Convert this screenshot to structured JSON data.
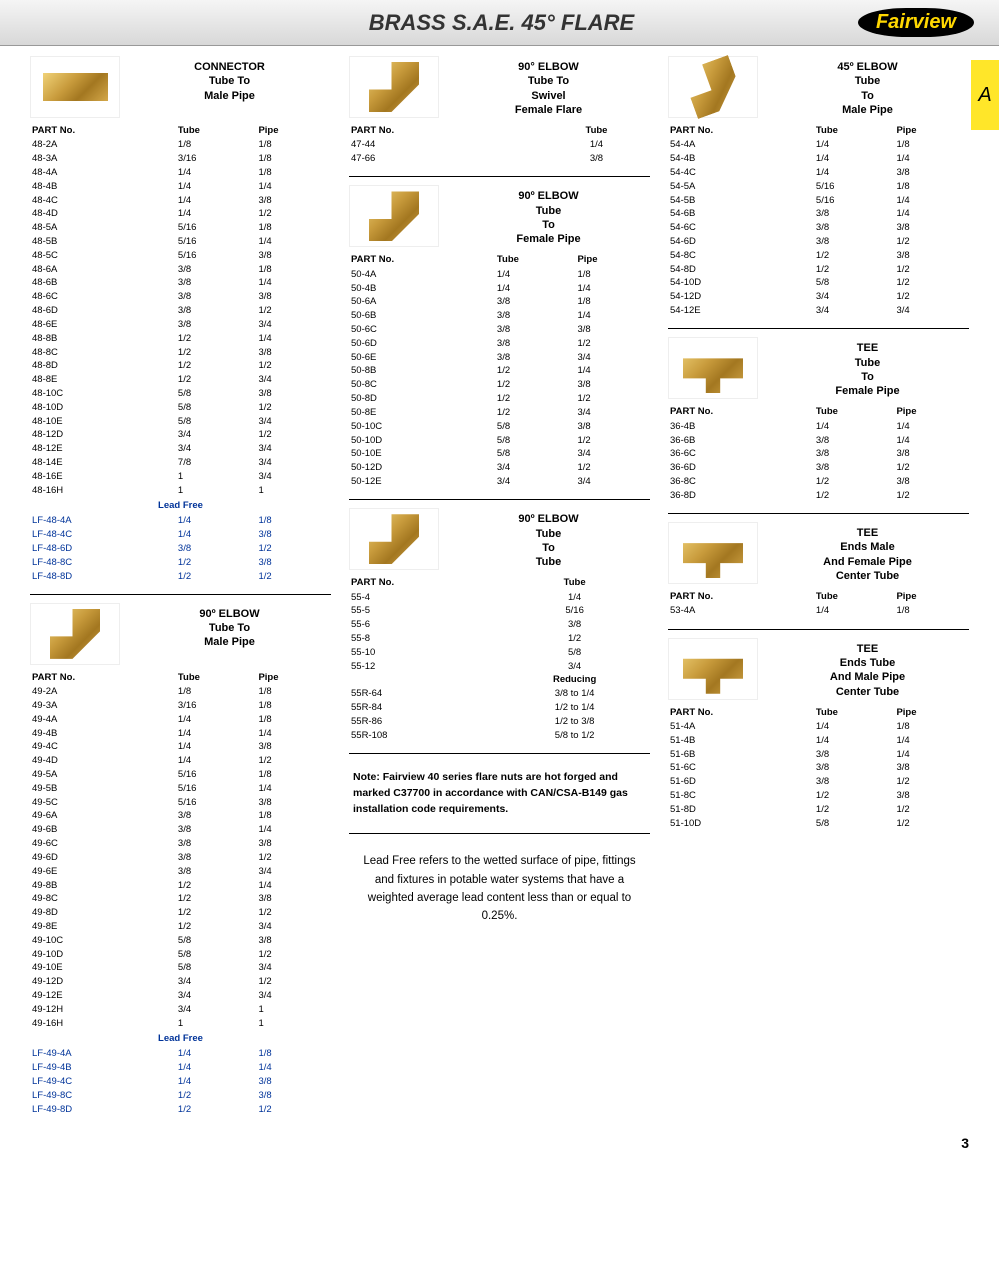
{
  "header": {
    "title": "BRASS S.A.E. 45° FLARE",
    "logo": "Fairview",
    "tab": "A",
    "page": "3"
  },
  "labels": {
    "part": "PART No.",
    "tube": "Tube",
    "pipe": "Pipe",
    "leadfree": "Lead Free",
    "reducing": "Reducing"
  },
  "s48": {
    "title": "CONNECTOR\nTube To\nMale Pipe",
    "rows": [
      [
        "48-2A",
        "1/8",
        "1/8"
      ],
      [
        "48-3A",
        "3/16",
        "1/8"
      ],
      [
        "48-4A",
        "1/4",
        "1/8"
      ],
      [
        "48-4B",
        "1/4",
        "1/4"
      ],
      [
        "48-4C",
        "1/4",
        "3/8"
      ],
      [
        "48-4D",
        "1/4",
        "1/2"
      ],
      [
        "48-5A",
        "5/16",
        "1/8"
      ],
      [
        "48-5B",
        "5/16",
        "1/4"
      ],
      [
        "48-5C",
        "5/16",
        "3/8"
      ],
      [
        "48-6A",
        "3/8",
        "1/8"
      ],
      [
        "48-6B",
        "3/8",
        "1/4"
      ],
      [
        "48-6C",
        "3/8",
        "3/8"
      ],
      [
        "48-6D",
        "3/8",
        "1/2"
      ],
      [
        "48-6E",
        "3/8",
        "3/4"
      ],
      [
        "48-8B",
        "1/2",
        "1/4"
      ],
      [
        "48-8C",
        "1/2",
        "3/8"
      ],
      [
        "48-8D",
        "1/2",
        "1/2"
      ],
      [
        "48-8E",
        "1/2",
        "3/4"
      ],
      [
        "48-10C",
        "5/8",
        "3/8"
      ],
      [
        "48-10D",
        "5/8",
        "1/2"
      ],
      [
        "48-10E",
        "5/8",
        "3/4"
      ],
      [
        "48-12D",
        "3/4",
        "1/2"
      ],
      [
        "48-12E",
        "3/4",
        "3/4"
      ],
      [
        "48-14E",
        "7/8",
        "3/4"
      ],
      [
        "48-16E",
        "1",
        "3/4"
      ],
      [
        "48-16H",
        "1",
        "1"
      ]
    ],
    "lf": [
      [
        "LF-48-4A",
        "1/4",
        "1/8"
      ],
      [
        "LF-48-4C",
        "1/4",
        "3/8"
      ],
      [
        "LF-48-6D",
        "3/8",
        "1/2"
      ],
      [
        "LF-48-8C",
        "1/2",
        "3/8"
      ],
      [
        "LF-48-8D",
        "1/2",
        "1/2"
      ]
    ]
  },
  "s49": {
    "title": "90º ELBOW\nTube To\nMale Pipe",
    "rows": [
      [
        "49-2A",
        "1/8",
        "1/8"
      ],
      [
        "49-3A",
        "3/16",
        "1/8"
      ],
      [
        "49-4A",
        "1/4",
        "1/8"
      ],
      [
        "49-4B",
        "1/4",
        "1/4"
      ],
      [
        "49-4C",
        "1/4",
        "3/8"
      ],
      [
        "49-4D",
        "1/4",
        "1/2"
      ],
      [
        "49-5A",
        "5/16",
        "1/8"
      ],
      [
        "49-5B",
        "5/16",
        "1/4"
      ],
      [
        "49-5C",
        "5/16",
        "3/8"
      ],
      [
        "49-6A",
        "3/8",
        "1/8"
      ],
      [
        "49-6B",
        "3/8",
        "1/4"
      ],
      [
        "49-6C",
        "3/8",
        "3/8"
      ],
      [
        "49-6D",
        "3/8",
        "1/2"
      ],
      [
        "49-6E",
        "3/8",
        "3/4"
      ],
      [
        "49-8B",
        "1/2",
        "1/4"
      ],
      [
        "49-8C",
        "1/2",
        "3/8"
      ],
      [
        "49-8D",
        "1/2",
        "1/2"
      ],
      [
        "49-8E",
        "1/2",
        "3/4"
      ],
      [
        "49-10C",
        "5/8",
        "3/8"
      ],
      [
        "49-10D",
        "5/8",
        "1/2"
      ],
      [
        "49-10E",
        "5/8",
        "3/4"
      ],
      [
        "49-12D",
        "3/4",
        "1/2"
      ],
      [
        "49-12E",
        "3/4",
        "3/4"
      ],
      [
        "49-12H",
        "3/4",
        "1"
      ],
      [
        "49-16H",
        "1",
        "1"
      ]
    ],
    "lf": [
      [
        "LF-49-4A",
        "1/4",
        "1/8"
      ],
      [
        "LF-49-4B",
        "1/4",
        "1/4"
      ],
      [
        "LF-49-4C",
        "1/4",
        "3/8"
      ],
      [
        "LF-49-8C",
        "1/2",
        "3/8"
      ],
      [
        "LF-49-8D",
        "1/2",
        "1/2"
      ]
    ]
  },
  "s47": {
    "title": "90° ELBOW\nTube To\nSwivel\nFemale Flare",
    "rows": [
      [
        "47-44",
        "1/4"
      ],
      [
        "47-66",
        "3/8"
      ]
    ]
  },
  "s50": {
    "title": "90º ELBOW\nTube\nTo\nFemale Pipe",
    "rows": [
      [
        "50-4A",
        "1/4",
        "1/8"
      ],
      [
        "50-4B",
        "1/4",
        "1/4"
      ],
      [
        "50-6A",
        "3/8",
        "1/8"
      ],
      [
        "50-6B",
        "3/8",
        "1/4"
      ],
      [
        "50-6C",
        "3/8",
        "3/8"
      ],
      [
        "50-6D",
        "3/8",
        "1/2"
      ],
      [
        "50-6E",
        "3/8",
        "3/4"
      ],
      [
        "50-8B",
        "1/2",
        "1/4"
      ],
      [
        "50-8C",
        "1/2",
        "3/8"
      ],
      [
        "50-8D",
        "1/2",
        "1/2"
      ],
      [
        "50-8E",
        "1/2",
        "3/4"
      ],
      [
        "50-10C",
        "5/8",
        "3/8"
      ],
      [
        "50-10D",
        "5/8",
        "1/2"
      ],
      [
        "50-10E",
        "5/8",
        "3/4"
      ],
      [
        "50-12D",
        "3/4",
        "1/2"
      ],
      [
        "50-12E",
        "3/4",
        "3/4"
      ]
    ]
  },
  "s55": {
    "title": "90º ELBOW\nTube\nTo\nTube",
    "rows": [
      [
        "55-4",
        "1/4"
      ],
      [
        "55-5",
        "5/16"
      ],
      [
        "55-6",
        "3/8"
      ],
      [
        "55-8",
        "1/2"
      ],
      [
        "55-10",
        "5/8"
      ],
      [
        "55-12",
        "3/4"
      ]
    ],
    "red": [
      [
        "55R-64",
        "3/8 to 1/4"
      ],
      [
        "55R-84",
        "1/2 to 1/4"
      ],
      [
        "55R-86",
        "1/2 to 3/8"
      ],
      [
        "55R-108",
        "5/8 to 1/2"
      ]
    ]
  },
  "note1": "Note: Fairview 40 series flare nuts are hot forged and marked C37700 in accordance with CAN/CSA-B149 gas installation code requirements.",
  "note2": "Lead Free refers to the wetted surface of pipe, fittings and fixtures in potable water systems that have a weighted average lead content less than or equal to 0.25%.",
  "s54": {
    "title": "45º ELBOW\nTube\nTo\nMale Pipe",
    "rows": [
      [
        "54-4A",
        "1/4",
        "1/8"
      ],
      [
        "54-4B",
        "1/4",
        "1/4"
      ],
      [
        "54-4C",
        "1/4",
        "3/8"
      ],
      [
        "54-5A",
        "5/16",
        "1/8"
      ],
      [
        "54-5B",
        "5/16",
        "1/4"
      ],
      [
        "54-6B",
        "3/8",
        "1/4"
      ],
      [
        "54-6C",
        "3/8",
        "3/8"
      ],
      [
        "54-6D",
        "3/8",
        "1/2"
      ],
      [
        "54-8C",
        "1/2",
        "3/8"
      ],
      [
        "54-8D",
        "1/2",
        "1/2"
      ],
      [
        "54-10D",
        "5/8",
        "1/2"
      ],
      [
        "54-12D",
        "3/4",
        "1/2"
      ],
      [
        "54-12E",
        "3/4",
        "3/4"
      ]
    ]
  },
  "s36": {
    "title": "TEE\nTube\nTo\nFemale Pipe",
    "rows": [
      [
        "36-4B",
        "1/4",
        "1/4"
      ],
      [
        "36-6B",
        "3/8",
        "1/4"
      ],
      [
        "36-6C",
        "3/8",
        "3/8"
      ],
      [
        "36-6D",
        "3/8",
        "1/2"
      ],
      [
        "36-8C",
        "1/2",
        "3/8"
      ],
      [
        "36-8D",
        "1/2",
        "1/2"
      ]
    ]
  },
  "s53": {
    "title": "TEE\nEnds Male\nAnd Female Pipe\nCenter Tube",
    "rows": [
      [
        "53-4A",
        "1/4",
        "1/8"
      ]
    ]
  },
  "s51": {
    "title": "TEE\nEnds Tube\nAnd Male Pipe\nCenter Tube",
    "rows": [
      [
        "51-4A",
        "1/4",
        "1/8"
      ],
      [
        "51-4B",
        "1/4",
        "1/4"
      ],
      [
        "51-6B",
        "3/8",
        "1/4"
      ],
      [
        "51-6C",
        "3/8",
        "3/8"
      ],
      [
        "51-6D",
        "3/8",
        "1/2"
      ],
      [
        "51-8C",
        "1/2",
        "3/8"
      ],
      [
        "51-8D",
        "1/2",
        "1/2"
      ],
      [
        "51-10D",
        "5/8",
        "1/2"
      ]
    ]
  }
}
